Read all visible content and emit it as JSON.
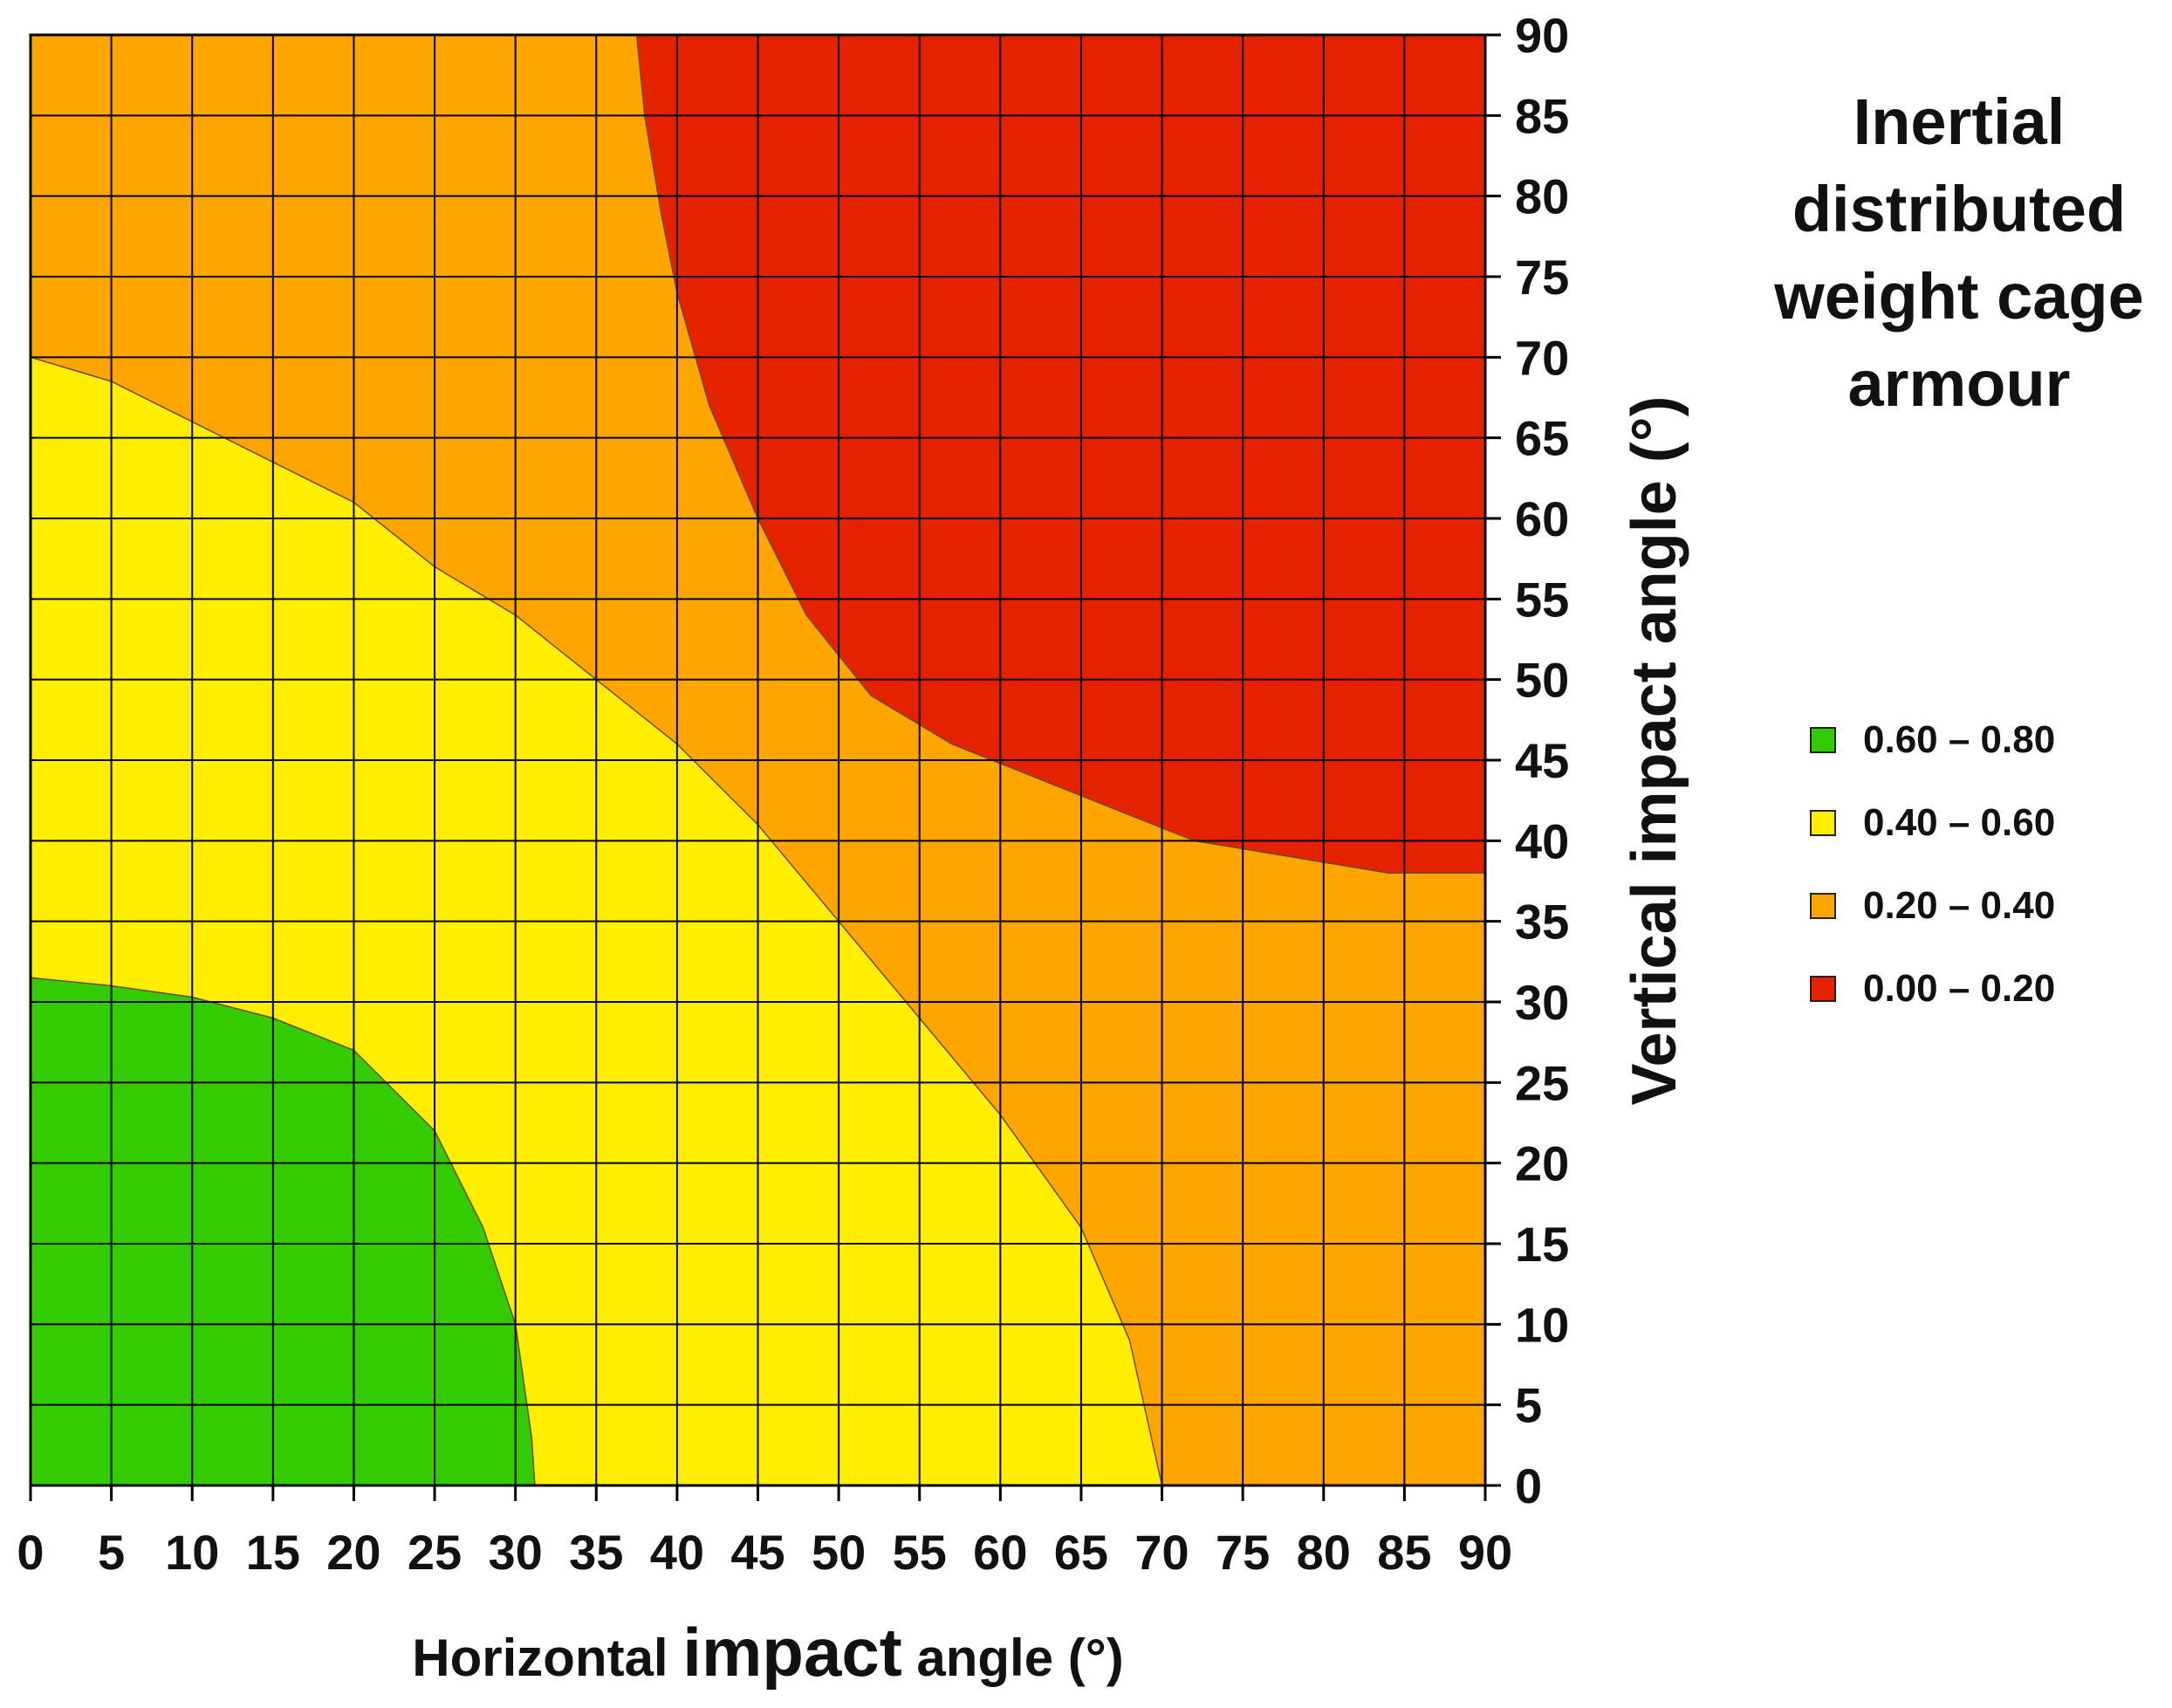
{
  "chart_data": {
    "type": "contour",
    "title_lines": [
      "Inertial",
      "distributed",
      "weight cage",
      "armour"
    ],
    "xlabel_parts": [
      "Horizontal ",
      "impact",
      " angle (°)"
    ],
    "ylabel": "Vertical impact angle (°)",
    "xlim": [
      0,
      90
    ],
    "ylim": [
      0,
      90
    ],
    "xticks": [
      0,
      5,
      10,
      15,
      20,
      25,
      30,
      35,
      40,
      45,
      50,
      55,
      60,
      65,
      70,
      75,
      80,
      85,
      90
    ],
    "yticks": [
      0,
      5,
      10,
      15,
      20,
      25,
      30,
      35,
      40,
      45,
      50,
      55,
      60,
      65,
      70,
      75,
      80,
      85,
      90
    ],
    "grid": true,
    "legend_position": "right",
    "levels": [
      {
        "name": "0.60 – 0.80",
        "color": "#33cc00"
      },
      {
        "name": "0.40 – 0.60",
        "color": "#ffee00"
      },
      {
        "name": "0.20 – 0.40",
        "color": "#ffa500"
      },
      {
        "name": "0.00 – 0.20",
        "color": "#e52200"
      }
    ],
    "background_color": "#ffa500",
    "regions": [
      {
        "level": "0.40 – 0.60",
        "color": "#ffee00",
        "boundary": [
          [
            0,
            70
          ],
          [
            5,
            68.5
          ],
          [
            10,
            66
          ],
          [
            15,
            63.5
          ],
          [
            20,
            61
          ],
          [
            25,
            57
          ],
          [
            30,
            54
          ],
          [
            35,
            50
          ],
          [
            40,
            46
          ],
          [
            45,
            41
          ],
          [
            50,
            35
          ],
          [
            55,
            29
          ],
          [
            60,
            23
          ],
          [
            65,
            16
          ],
          [
            68,
            9
          ],
          [
            70,
            0
          ],
          [
            0,
            0
          ]
        ]
      },
      {
        "level": "0.60 – 0.80",
        "color": "#33cc00",
        "boundary": [
          [
            0,
            31.5
          ],
          [
            5,
            31
          ],
          [
            10,
            30.3
          ],
          [
            15,
            29
          ],
          [
            20,
            27
          ],
          [
            25,
            22
          ],
          [
            28,
            16
          ],
          [
            30,
            10
          ],
          [
            31,
            3
          ],
          [
            31.2,
            0
          ],
          [
            0,
            0
          ]
        ]
      },
      {
        "level": "0.00 – 0.20",
        "color": "#e52200",
        "boundary": [
          [
            37.5,
            90
          ],
          [
            38,
            85
          ],
          [
            39,
            79
          ],
          [
            40,
            74
          ],
          [
            42,
            67
          ],
          [
            45,
            60
          ],
          [
            48,
            54
          ],
          [
            52,
            49
          ],
          [
            57,
            46
          ],
          [
            62,
            44
          ],
          [
            67,
            42
          ],
          [
            72,
            40
          ],
          [
            78,
            39
          ],
          [
            84,
            38
          ],
          [
            90,
            38
          ],
          [
            90,
            90
          ]
        ]
      }
    ]
  }
}
